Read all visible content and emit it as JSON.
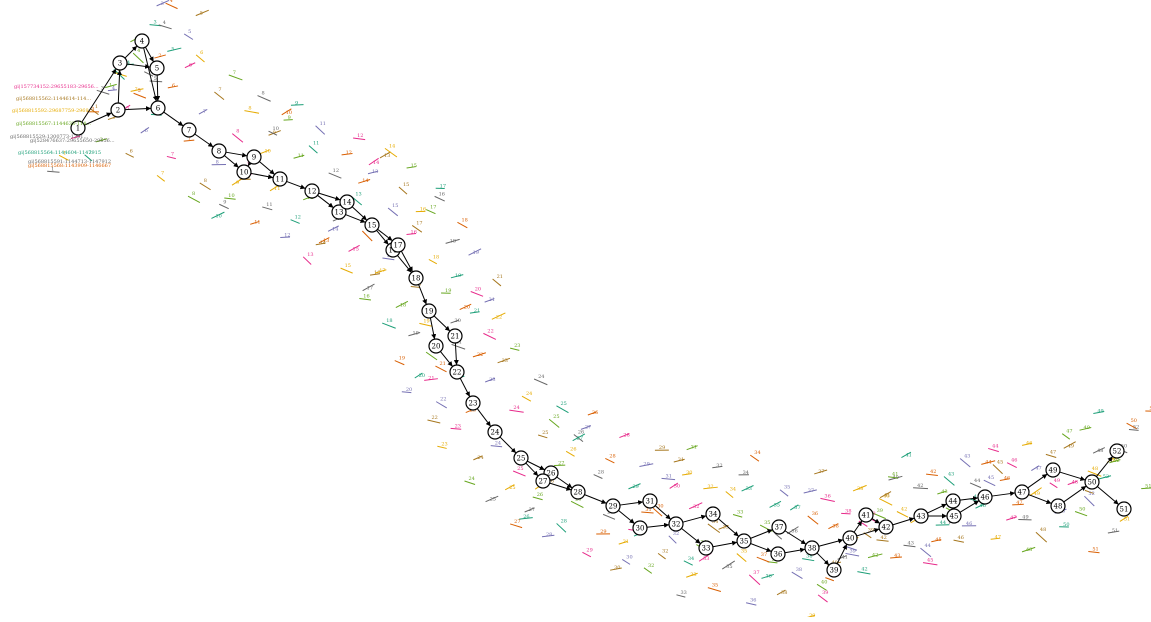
{
  "graph": {
    "nodes": [
      {
        "id": "n1",
        "label": "1"
      },
      {
        "id": "n2",
        "label": "2"
      },
      {
        "id": "n3",
        "label": "3"
      },
      {
        "id": "n4",
        "label": "4"
      },
      {
        "id": "n5",
        "label": "5"
      },
      {
        "id": "n6",
        "label": "6"
      },
      {
        "id": "n7",
        "label": "7"
      },
      {
        "id": "n8",
        "label": "8"
      },
      {
        "id": "n9",
        "label": "9"
      },
      {
        "id": "n10",
        "label": "10"
      },
      {
        "id": "n11",
        "label": "11"
      },
      {
        "id": "n12",
        "label": "12"
      },
      {
        "id": "n13",
        "label": "13"
      },
      {
        "id": "n14",
        "label": "14"
      },
      {
        "id": "n15",
        "label": "15"
      },
      {
        "id": "n16",
        "label": "16"
      },
      {
        "id": "n17",
        "label": "17"
      },
      {
        "id": "n18",
        "label": "18"
      },
      {
        "id": "n19",
        "label": "19"
      },
      {
        "id": "n20",
        "label": "20"
      },
      {
        "id": "n21",
        "label": "21"
      },
      {
        "id": "n22",
        "label": "22"
      },
      {
        "id": "n23",
        "label": "23"
      },
      {
        "id": "n24",
        "label": "24"
      },
      {
        "id": "n25",
        "label": "25"
      },
      {
        "id": "n26",
        "label": "26"
      },
      {
        "id": "n27",
        "label": "27"
      },
      {
        "id": "n28",
        "label": "28"
      },
      {
        "id": "n29",
        "label": "29"
      },
      {
        "id": "n30",
        "label": "30"
      },
      {
        "id": "n31",
        "label": "31"
      },
      {
        "id": "n32",
        "label": "32"
      },
      {
        "id": "n33",
        "label": "33"
      },
      {
        "id": "n34",
        "label": "34"
      },
      {
        "id": "n35",
        "label": "35"
      },
      {
        "id": "n36",
        "label": "36"
      },
      {
        "id": "n37",
        "label": "37"
      },
      {
        "id": "n38",
        "label": "38"
      },
      {
        "id": "n39",
        "label": "39"
      },
      {
        "id": "n40",
        "label": "40"
      },
      {
        "id": "n41",
        "label": "41"
      },
      {
        "id": "n42",
        "label": "42"
      },
      {
        "id": "n43",
        "label": "43"
      },
      {
        "id": "n44",
        "label": "44"
      },
      {
        "id": "n45",
        "label": "45"
      },
      {
        "id": "n46",
        "label": "46"
      },
      {
        "id": "n47",
        "label": "47"
      },
      {
        "id": "n48",
        "label": "48"
      },
      {
        "id": "n49",
        "label": "49"
      },
      {
        "id": "n50",
        "label": "50"
      },
      {
        "id": "n51",
        "label": "51"
      },
      {
        "id": "n52",
        "label": "52"
      }
    ],
    "edges": [
      [
        "n1",
        "n2"
      ],
      [
        "n1",
        "n3"
      ],
      [
        "n2",
        "n3"
      ],
      [
        "n2",
        "n6"
      ],
      [
        "n3",
        "n4"
      ],
      [
        "n3",
        "n5"
      ],
      [
        "n4",
        "n5"
      ],
      [
        "n4",
        "n6"
      ],
      [
        "n5",
        "n6"
      ],
      [
        "n6",
        "n7"
      ],
      [
        "n7",
        "n8"
      ],
      [
        "n8",
        "n9"
      ],
      [
        "n8",
        "n10"
      ],
      [
        "n9",
        "n10"
      ],
      [
        "n9",
        "n11"
      ],
      [
        "n10",
        "n11"
      ],
      [
        "n11",
        "n12"
      ],
      [
        "n12",
        "n13"
      ],
      [
        "n12",
        "n14"
      ],
      [
        "n13",
        "n14"
      ],
      [
        "n13",
        "n15"
      ],
      [
        "n14",
        "n15"
      ],
      [
        "n15",
        "n16"
      ],
      [
        "n15",
        "n17"
      ],
      [
        "n16",
        "n17"
      ],
      [
        "n16",
        "n18"
      ],
      [
        "n17",
        "n18"
      ],
      [
        "n18",
        "n19"
      ],
      [
        "n19",
        "n20"
      ],
      [
        "n19",
        "n21"
      ],
      [
        "n20",
        "n22"
      ],
      [
        "n21",
        "n22"
      ],
      [
        "n22",
        "n23"
      ],
      [
        "n23",
        "n24"
      ],
      [
        "n24",
        "n25"
      ],
      [
        "n25",
        "n26"
      ],
      [
        "n25",
        "n27"
      ],
      [
        "n26",
        "n27"
      ],
      [
        "n26",
        "n28"
      ],
      [
        "n27",
        "n28"
      ],
      [
        "n28",
        "n29"
      ],
      [
        "n29",
        "n30"
      ],
      [
        "n29",
        "n31"
      ],
      [
        "n30",
        "n32"
      ],
      [
        "n31",
        "n32"
      ],
      [
        "n32",
        "n33"
      ],
      [
        "n32",
        "n34"
      ],
      [
        "n33",
        "n35"
      ],
      [
        "n34",
        "n35"
      ],
      [
        "n35",
        "n36"
      ],
      [
        "n35",
        "n37"
      ],
      [
        "n36",
        "n38"
      ],
      [
        "n37",
        "n38"
      ],
      [
        "n38",
        "n39"
      ],
      [
        "n38",
        "n40"
      ],
      [
        "n39",
        "n40"
      ],
      [
        "n40",
        "n41"
      ],
      [
        "n40",
        "n42"
      ],
      [
        "n41",
        "n42"
      ],
      [
        "n42",
        "n43"
      ],
      [
        "n43",
        "n44"
      ],
      [
        "n43",
        "n45"
      ],
      [
        "n44",
        "n45"
      ],
      [
        "n44",
        "n46"
      ],
      [
        "n45",
        "n46"
      ],
      [
        "n46",
        "n47"
      ],
      [
        "n47",
        "n48"
      ],
      [
        "n47",
        "n49"
      ],
      [
        "n48",
        "n50"
      ],
      [
        "n49",
        "n50"
      ],
      [
        "n50",
        "n51"
      ],
      [
        "n50",
        "n52"
      ]
    ],
    "sequence_labels": [
      {
        "text": "gi|157734152:29655183-29656...",
        "color": "#e7298a"
      },
      {
        "text": "gi|568815562:1144614-114...",
        "color": "#a6761d"
      },
      {
        "text": "gi|568815592:29687759-2969...",
        "color": "#e6ab02"
      },
      {
        "text": "gi|568815567:1144633-114...",
        "color": "#66a61e"
      },
      {
        "text": "gi|568815529:1300773-1301...",
        "color": "#666666"
      },
      {
        "text": "gi|528476637:29655650-29656...",
        "color": "#666666"
      },
      {
        "text": "gi|568815564:1144604-1147915",
        "color": "#1b9e77"
      },
      {
        "text": "gi|568815591:1144713-1147912",
        "color": "#666666"
      },
      {
        "text": "gi|568815568:1143909-1146667",
        "color": "#d95f02"
      }
    ],
    "path_colors": [
      "#e7298a",
      "#a6761d",
      "#e6ab02",
      "#66a61e",
      "#666666",
      "#1b9e77",
      "#d95f02",
      "#7570b3"
    ]
  }
}
